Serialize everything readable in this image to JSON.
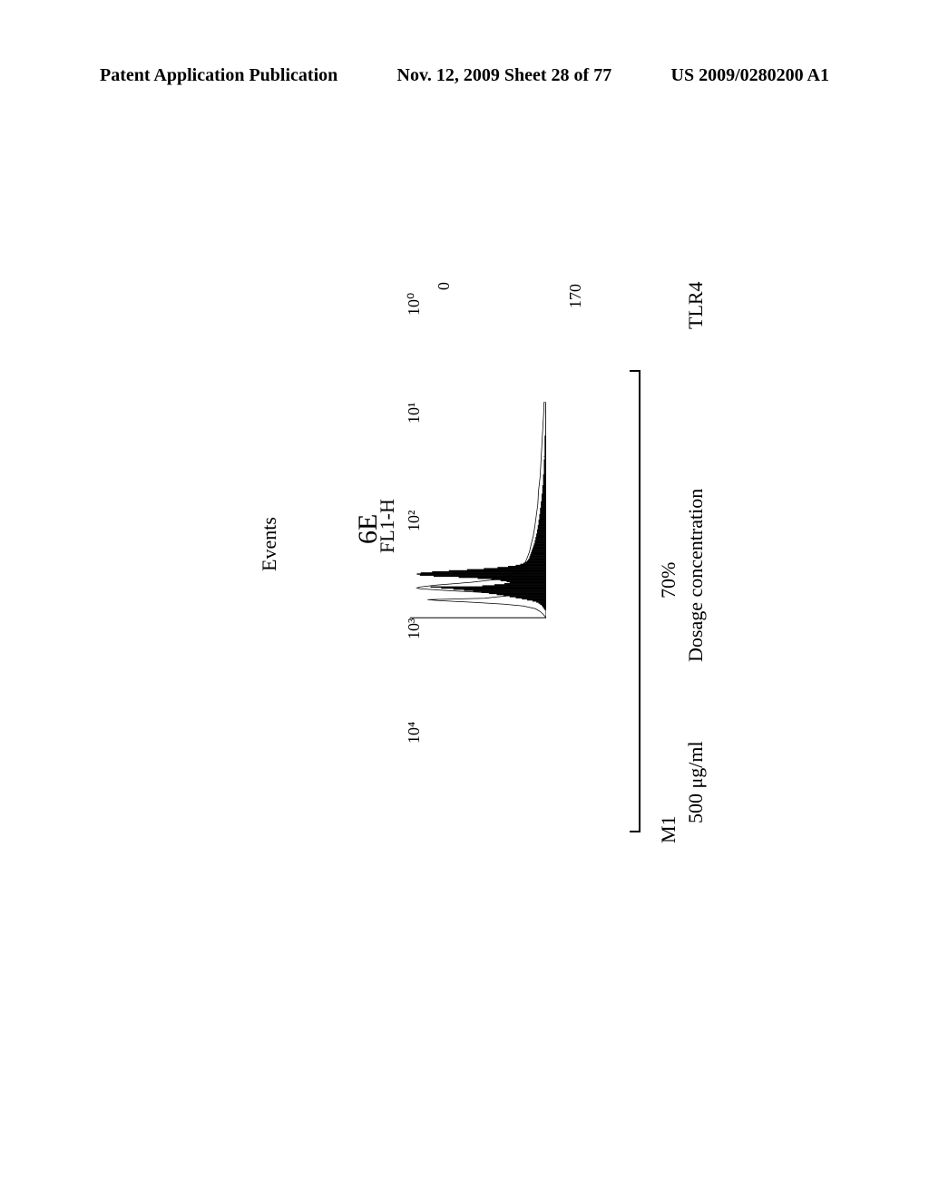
{
  "header": {
    "left": "Patent Application Publication",
    "center": "Nov. 12, 2009  Sheet 28 of 77",
    "right": "US 2009/0280200 A1"
  },
  "chart": {
    "title_left": "TLR4",
    "title_center": "Dosage concentration",
    "title_right": "500 μg/ml",
    "marker_percent": "70%",
    "marker_label": "M1",
    "y_axis_label": "Events",
    "y_max_label": "170",
    "y_min_label": "0",
    "x_axis_label": "FL1-H",
    "x_ticks": [
      "10⁰",
      "10¹",
      "10²",
      "10³",
      "10⁴"
    ],
    "figure_label": "6E",
    "histogram_bars": [
      0,
      0,
      0,
      0,
      0,
      0,
      0,
      2,
      3,
      4,
      5,
      6,
      8,
      10,
      13,
      18,
      25,
      32,
      40,
      48,
      56,
      65,
      75,
      85,
      96,
      108,
      122,
      138,
      152,
      84,
      68,
      55,
      48,
      52,
      60,
      72,
      90,
      115,
      148,
      166,
      170,
      165,
      150,
      128,
      104,
      82,
      64,
      50,
      40,
      34,
      30,
      27,
      25,
      24,
      23,
      22,
      22,
      21,
      21,
      20,
      20,
      19,
      19,
      18,
      18,
      17,
      17,
      16,
      16,
      15,
      15,
      15,
      14,
      14,
      14,
      13,
      13,
      13,
      12,
      12,
      12,
      12,
      11,
      11,
      11,
      11,
      10,
      10,
      10,
      10,
      10,
      9,
      9,
      9,
      9,
      9,
      8,
      8,
      8,
      8,
      8,
      8,
      7,
      7,
      7,
      7,
      7,
      7,
      6,
      6,
      6,
      6,
      6,
      6,
      6,
      5,
      5,
      5,
      5,
      5,
      5,
      5,
      5,
      4,
      4,
      4,
      4,
      4,
      4,
      4,
      4,
      4,
      4,
      3,
      3,
      3,
      3,
      3,
      3,
      3,
      3,
      3,
      3,
      3,
      3,
      3,
      3,
      2,
      2,
      2,
      2,
      2,
      2,
      2,
      2,
      2,
      2,
      2,
      2,
      2,
      2,
      2,
      2,
      2,
      2,
      2,
      2,
      2,
      2,
      1,
      1,
      1,
      1,
      1,
      1,
      1,
      1,
      1,
      1,
      1,
      1,
      1,
      1,
      1,
      1,
      1,
      1,
      1,
      1,
      1,
      1,
      1,
      1,
      1,
      1,
      1,
      1,
      1,
      1,
      1
    ],
    "outline_points": [
      [
        0,
        0
      ],
      [
        8,
        4
      ],
      [
        14,
        8
      ],
      [
        20,
        14
      ],
      [
        26,
        30
      ],
      [
        30,
        55
      ],
      [
        34,
        95
      ],
      [
        38,
        142
      ],
      [
        40,
        156
      ],
      [
        43,
        81
      ],
      [
        46,
        65
      ],
      [
        48,
        52
      ],
      [
        50,
        48
      ],
      [
        53,
        60
      ],
      [
        56,
        85
      ],
      [
        60,
        130
      ],
      [
        64,
        166
      ],
      [
        66,
        170
      ],
      [
        68,
        165
      ],
      [
        72,
        145
      ],
      [
        78,
        100
      ],
      [
        84,
        68
      ],
      [
        92,
        48
      ],
      [
        100,
        38
      ],
      [
        110,
        32
      ],
      [
        120,
        28
      ],
      [
        132,
        25
      ],
      [
        145,
        22
      ],
      [
        160,
        20
      ],
      [
        180,
        17
      ],
      [
        200,
        15
      ],
      [
        225,
        13
      ],
      [
        250,
        11
      ],
      [
        280,
        10
      ],
      [
        310,
        8
      ],
      [
        340,
        7
      ],
      [
        370,
        6
      ],
      [
        400,
        5
      ],
      [
        430,
        4
      ],
      [
        460,
        3
      ],
      [
        475,
        3
      ]
    ],
    "colors": {
      "background": "#ffffff",
      "line": "#000000",
      "fill": "#000000"
    },
    "y_range": [
      0,
      170
    ],
    "x_range_log": [
      0,
      4
    ]
  }
}
